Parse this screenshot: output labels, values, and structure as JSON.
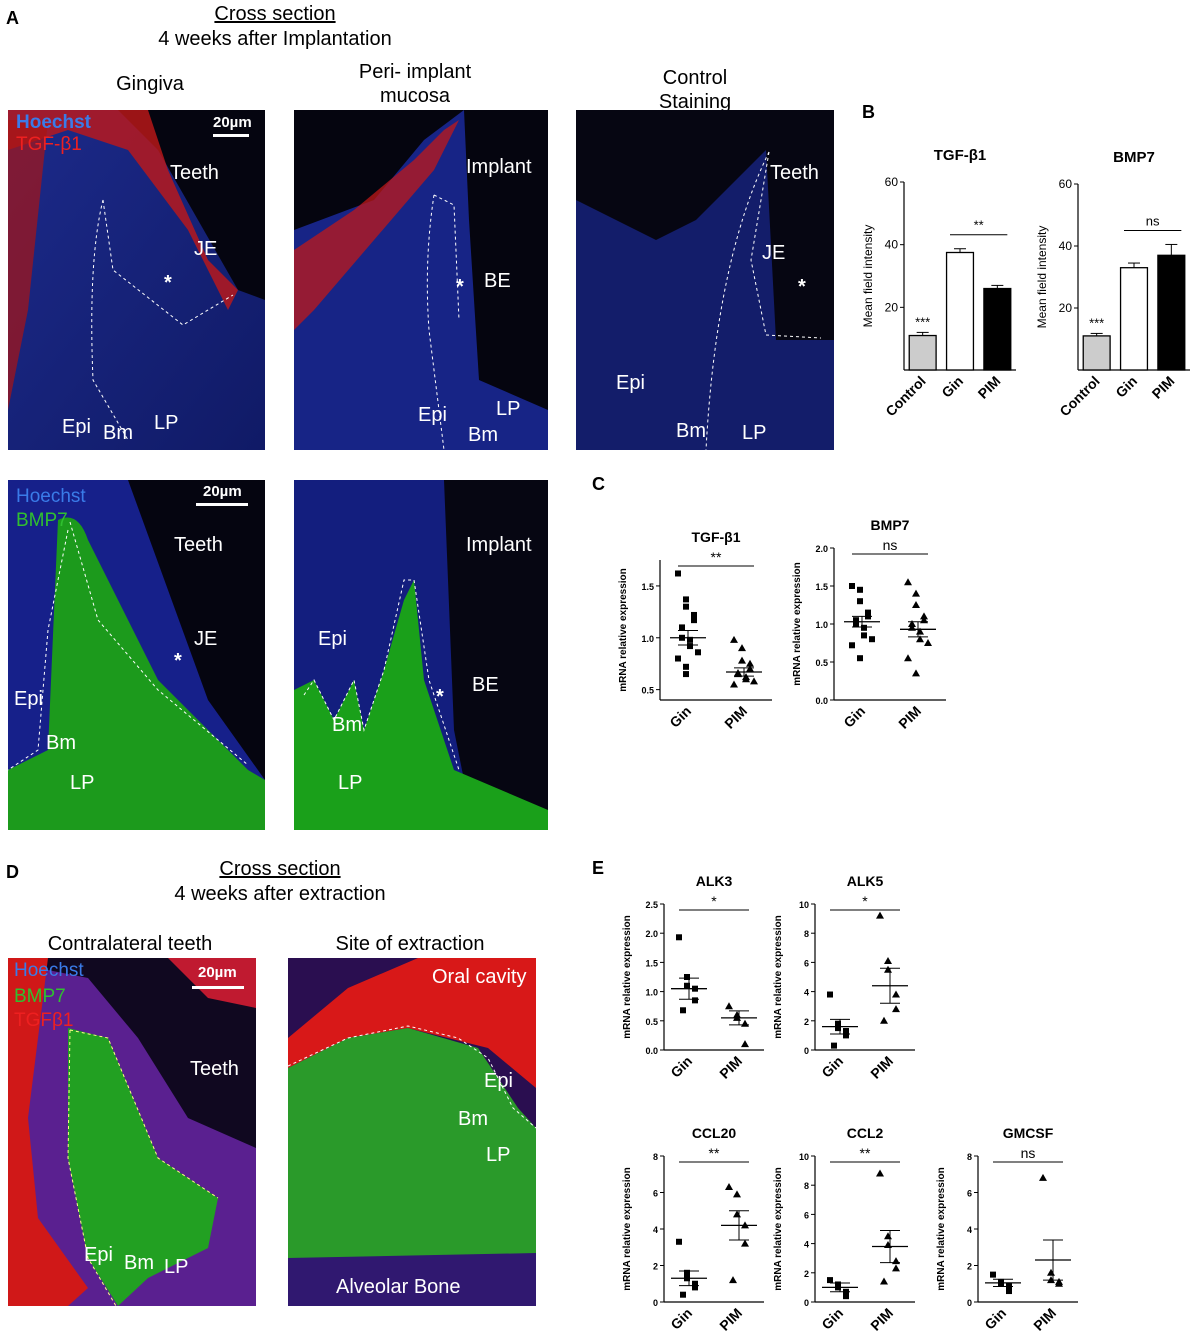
{
  "panels": {
    "A": "A",
    "B": "B",
    "C": "C",
    "D": "D",
    "E": "E"
  },
  "sectionA": {
    "line1": "Cross section",
    "line2": "4 weeks after Implantation",
    "cols": [
      "Gingiva",
      "Peri-implant mucosa",
      "Control Staining"
    ],
    "col2": [
      "Peri-",
      "implant",
      "mucosa"
    ],
    "col3": [
      "Control",
      "Staining"
    ]
  },
  "sectionD": {
    "line1": "Cross section",
    "line2": "4 weeks after extraction",
    "cols": [
      "Contralateral teeth",
      "Site of extraction"
    ]
  },
  "stains": {
    "hoechst": "Hoechst",
    "tgf": "TGF-β1",
    "bmp7": "BMP7",
    "tgf2": "TGFβ1"
  },
  "scale": "20µm",
  "tissue": {
    "teeth": "Teeth",
    "implant": "Implant",
    "je": "JE",
    "be": "BE",
    "epi": "Epi",
    "bm": "Bm",
    "lp": "LP",
    "star": "*",
    "oral": "Oral cavity",
    "alv": "Alveolar Bone"
  },
  "colors": {
    "hoechst": "#2255dd",
    "tgf": "#e01010",
    "bmp7": "#20b020"
  },
  "chart_data": [
    {
      "panel": "B",
      "type": "bar",
      "title": "TGF-β1",
      "ylabel": "Mean field intensity",
      "categories": [
        "Control",
        "Gin",
        "PIM"
      ],
      "values": [
        11,
        37.5,
        26
      ],
      "errors": [
        1,
        1.2,
        1
      ],
      "ylim": [
        0,
        60
      ],
      "yticks": [
        20,
        40,
        60
      ],
      "annotations": [
        {
          "over": "Control",
          "text": "***"
        },
        {
          "between": [
            "Gin",
            "PIM"
          ],
          "text": "**"
        }
      ]
    },
    {
      "panel": "B",
      "type": "bar",
      "title": "BMP7",
      "ylabel": "Mean field intensity",
      "categories": [
        "Control",
        "Gin",
        "PIM"
      ],
      "values": [
        11,
        33,
        37
      ],
      "errors": [
        0.8,
        1.5,
        3.5
      ],
      "ylim": [
        0,
        60
      ],
      "yticks": [
        20,
        40,
        60
      ],
      "annotations": [
        {
          "over": "Control",
          "text": "***"
        },
        {
          "between": [
            "Gin",
            "PIM"
          ],
          "text": "ns"
        }
      ]
    },
    {
      "panel": "C",
      "type": "scatter",
      "title": "TGF-β1",
      "ylabel": "mRNA relative expression",
      "categories": [
        "Gin",
        "PIM"
      ],
      "ylim": [
        0.4,
        1.75
      ],
      "yticks": [
        0.5,
        1.0,
        1.5
      ],
      "sig": "**",
      "points": [
        [
          1.62,
          1.37,
          1.3,
          1.22,
          1.17,
          1.1,
          1.0,
          0.98,
          0.92,
          0.86,
          0.8,
          0.72,
          0.65
        ],
        [
          0.98,
          0.9,
          0.78,
          0.75,
          0.7,
          0.66,
          0.65,
          0.62,
          0.6,
          0.58,
          0.55
        ]
      ],
      "mean": [
        1.0,
        0.67
      ],
      "sem": [
        0.07,
        0.04
      ]
    },
    {
      "panel": "C",
      "type": "scatter",
      "title": "BMP7",
      "ylabel": "mRNA relative expression",
      "categories": [
        "Gin",
        "PIM"
      ],
      "ylim": [
        0,
        2.0
      ],
      "yticks": [
        0.0,
        0.5,
        1.0,
        1.5,
        2.0
      ],
      "sig": "ns",
      "points": [
        [
          1.5,
          1.45,
          1.3,
          1.15,
          1.1,
          1.05,
          1.0,
          0.95,
          0.85,
          0.8,
          0.72,
          0.55
        ],
        [
          1.55,
          1.4,
          1.25,
          1.1,
          1.05,
          1.0,
          0.95,
          0.9,
          0.8,
          0.75,
          0.55,
          0.35
        ]
      ],
      "mean": [
        1.03,
        0.93
      ],
      "sem": [
        0.07,
        0.1
      ]
    },
    {
      "panel": "E",
      "type": "scatter",
      "title": "ALK3",
      "ylabel": "mRNA relative expression",
      "categories": [
        "Gin",
        "PIM"
      ],
      "ylim": [
        0,
        2.5
      ],
      "yticks": [
        0.0,
        0.5,
        1.0,
        1.5,
        2.0,
        2.5
      ],
      "sig": "*",
      "points": [
        [
          1.93,
          1.25,
          1.1,
          1.05,
          0.85,
          0.68
        ],
        [
          0.75,
          0.6,
          0.55,
          0.45,
          0.1
        ]
      ],
      "mean": [
        1.05,
        0.55
      ],
      "sem": [
        0.18,
        0.12
      ]
    },
    {
      "panel": "E",
      "type": "scatter",
      "title": "ALK5",
      "ylabel": "mRNA relative expression",
      "categories": [
        "Gin",
        "PIM"
      ],
      "ylim": [
        0,
        10
      ],
      "yticks": [
        0,
        2,
        4,
        6,
        8,
        10
      ],
      "sig": "*",
      "points": [
        [
          3.8,
          1.8,
          1.5,
          1.3,
          1.0,
          0.3
        ],
        [
          9.2,
          6.1,
          5.5,
          3.8,
          2.8,
          2.0
        ]
      ],
      "mean": [
        1.6,
        4.4
      ],
      "sem": [
        0.5,
        1.2
      ]
    },
    {
      "panel": "E",
      "type": "scatter",
      "title": "CCL20",
      "ylabel": "mRNA relative expression",
      "categories": [
        "Gin",
        "PIM"
      ],
      "ylim": [
        0,
        8
      ],
      "yticks": [
        0,
        2,
        4,
        6,
        8
      ],
      "sig": "**",
      "points": [
        [
          3.3,
          1.6,
          1.3,
          1.0,
          0.8,
          0.4
        ],
        [
          6.3,
          5.9,
          4.8,
          4.2,
          3.2,
          1.2
        ]
      ],
      "mean": [
        1.3,
        4.2
      ],
      "sem": [
        0.4,
        0.8
      ]
    },
    {
      "panel": "E",
      "type": "scatter",
      "title": "CCL2",
      "ylabel": "mRNA relative expression",
      "categories": [
        "Gin",
        "PIM"
      ],
      "ylim": [
        0,
        10
      ],
      "yticks": [
        0,
        2,
        4,
        6,
        8,
        10
      ],
      "sig": "**",
      "points": [
        [
          1.5,
          1.2,
          1.0,
          0.7,
          0.4
        ],
        [
          8.8,
          4.5,
          3.9,
          2.8,
          2.3,
          1.4
        ]
      ],
      "mean": [
        1.0,
        3.8
      ],
      "sem": [
        0.3,
        1.1
      ]
    },
    {
      "panel": "E",
      "type": "scatter",
      "title": "GMCSF",
      "ylabel": "mRNA relative expression",
      "categories": [
        "Gin",
        "PIM"
      ],
      "ylim": [
        0,
        8
      ],
      "yticks": [
        0,
        2,
        4,
        6,
        8
      ],
      "sig": "ns",
      "points": [
        [
          1.5,
          1.1,
          1.0,
          0.9,
          0.6
        ],
        [
          6.8,
          1.6,
          1.2,
          1.1,
          1.0
        ]
      ],
      "mean": [
        1.05,
        2.3
      ],
      "sem": [
        0.2,
        1.1
      ]
    }
  ]
}
